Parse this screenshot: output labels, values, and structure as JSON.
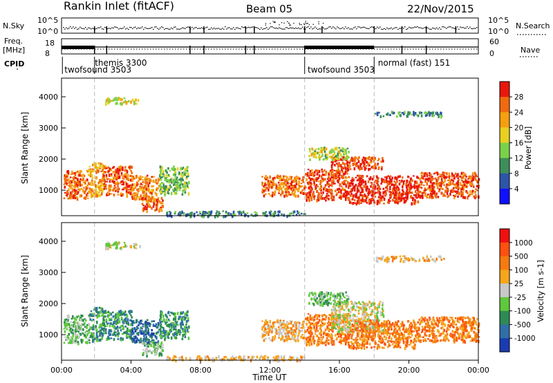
{
  "header": {
    "site": "Rankin Inlet (fitACF)",
    "beam": "Beam 05",
    "date": "22/Nov/2015"
  },
  "side_labels": {
    "nsky": "N.Sky",
    "nsearch": "N.Search",
    "freq_line1": "Freq.",
    "freq_line2": "[MHz]",
    "nave": "Nave",
    "cpid": "CPID"
  },
  "noise_axis": {
    "left_ticks": [
      "10^5",
      "10^0"
    ],
    "right_ticks": [
      "10^5",
      "10^0"
    ]
  },
  "freq_axis": {
    "left_ticks": [
      "18",
      "8"
    ],
    "right_ticks": [
      "60",
      "0"
    ]
  },
  "cpid_labels": [
    {
      "text": "twofsound 3503",
      "x_hour": 0.05,
      "row": 2
    },
    {
      "text": "themis 3300",
      "x_hour": 1.8,
      "row": 1
    },
    {
      "text": "twofsound 3503",
      "x_hour": 14.05,
      "row": 2
    },
    {
      "text": "normal (fast) 151",
      "x_hour": 18.1,
      "row": 1
    }
  ],
  "mode_changes_hours": [
    1.9,
    14.0,
    18.0
  ],
  "chart_data": [
    {
      "type": "heatmap",
      "ylabel": "Slant Range [km]",
      "y_ticks": [
        "1000",
        "2000",
        "3000",
        "4000"
      ],
      "ylim": [
        180,
        4600
      ],
      "xlim_hours": [
        0,
        24
      ],
      "colorbar": {
        "label": "Power [dB]",
        "ticks": [
          "4",
          "8",
          "12",
          "16",
          "20",
          "24",
          "28"
        ],
        "range": [
          0,
          32
        ],
        "colors": [
          "#1010ff",
          "#2d55a8",
          "#3e8e5a",
          "#7bd24a",
          "#e8d020",
          "#f5a010",
          "#f06a10",
          "#e8180c"
        ]
      },
      "regions": [
        {
          "t": [
            0.1,
            1.5
          ],
          "r": [
            750,
            1650
          ],
          "level": 26
        },
        {
          "t": [
            1.5,
            2.4
          ],
          "r": [
            800,
            1900
          ],
          "level": 22
        },
        {
          "t": [
            2.4,
            4.0
          ],
          "r": [
            850,
            1800
          ],
          "level": 27
        },
        {
          "t": [
            4.0,
            5.6
          ],
          "r": [
            700,
            1500
          ],
          "level": 24
        },
        {
          "t": [
            5.6,
            7.3
          ],
          "r": [
            900,
            1800
          ],
          "level": 13
        },
        {
          "t": [
            4.6,
            5.8
          ],
          "r": [
            350,
            800
          ],
          "level": 25
        },
        {
          "t": [
            2.5,
            4.5
          ],
          "r": [
            3800,
            4000
          ],
          "level": 18
        },
        {
          "t": [
            11.5,
            14.0
          ],
          "r": [
            850,
            1500
          ],
          "level": 25
        },
        {
          "t": [
            14.0,
            16.5
          ],
          "r": [
            700,
            1700
          ],
          "level": 28
        },
        {
          "t": [
            15.5,
            18.5
          ],
          "r": [
            1700,
            2100
          ],
          "level": 28
        },
        {
          "t": [
            16.5,
            20.5
          ],
          "r": [
            600,
            1500
          ],
          "level": 30
        },
        {
          "t": [
            20.5,
            24.0
          ],
          "r": [
            800,
            1600
          ],
          "level": 28
        },
        {
          "t": [
            18.0,
            22.0
          ],
          "r": [
            3400,
            3550
          ],
          "level": 10
        },
        {
          "t": [
            14.2,
            16.5
          ],
          "r": [
            2000,
            2400
          ],
          "level": 16
        },
        {
          "t": [
            6.0,
            14.0
          ],
          "r": [
            200,
            350
          ],
          "level": 9
        }
      ]
    },
    {
      "type": "heatmap",
      "ylabel": "Slant Range [km]",
      "y_ticks": [
        "1000",
        "2000",
        "3000",
        "4000"
      ],
      "ylim": [
        180,
        4600
      ],
      "xlim_hours": [
        0,
        24
      ],
      "x_ticks": [
        "00:00",
        "04:00",
        "08:00",
        "12:00",
        "16:00",
        "20:00",
        "00:00"
      ],
      "xlabel": "Time UT",
      "colorbar": {
        "label": "Velocity [m s-1]",
        "ticks": [
          "1000",
          "500",
          "100",
          "25",
          "-25",
          "-100",
          "-500",
          "-1000"
        ],
        "colors": [
          "#1a3cb0",
          "#2f6fa8",
          "#2e8a55",
          "#5fc83c",
          "#c8c8c8",
          "#f5a61a",
          "#f57a10",
          "#ff5010",
          "#f01010"
        ]
      },
      "regions": [
        {
          "t": [
            0.1,
            1.6
          ],
          "r": [
            750,
            1650
          ],
          "level": 3
        },
        {
          "t": [
            1.6,
            2.4
          ],
          "r": [
            800,
            1900
          ],
          "level": 2
        },
        {
          "t": [
            2.4,
            4.0
          ],
          "r": [
            850,
            1800
          ],
          "level": 2
        },
        {
          "t": [
            4.0,
            5.6
          ],
          "r": [
            750,
            1500
          ],
          "level": 1
        },
        {
          "t": [
            5.6,
            7.3
          ],
          "r": [
            900,
            1800
          ],
          "level": 2
        },
        {
          "t": [
            4.6,
            5.8
          ],
          "r": [
            350,
            800
          ],
          "level": 3
        },
        {
          "t": [
            2.5,
            4.5
          ],
          "r": [
            3800,
            4000
          ],
          "level": 4
        },
        {
          "t": [
            11.5,
            14.0
          ],
          "r": [
            850,
            1500
          ],
          "level": 5
        },
        {
          "t": [
            14.0,
            16.5
          ],
          "r": [
            700,
            1700
          ],
          "level": 6
        },
        {
          "t": [
            15.5,
            18.5
          ],
          "r": [
            1100,
            2100
          ],
          "level": 4
        },
        {
          "t": [
            16.5,
            20.5
          ],
          "r": [
            600,
            1500
          ],
          "level": 6
        },
        {
          "t": [
            20.5,
            24.0
          ],
          "r": [
            800,
            1600
          ],
          "level": 6
        },
        {
          "t": [
            18.0,
            22.0
          ],
          "r": [
            3400,
            3550
          ],
          "level": 5
        },
        {
          "t": [
            14.2,
            16.5
          ],
          "r": [
            2000,
            2400
          ],
          "level": 3
        },
        {
          "t": [
            6.0,
            14.0
          ],
          "r": [
            200,
            350
          ],
          "level": 5
        }
      ]
    }
  ]
}
